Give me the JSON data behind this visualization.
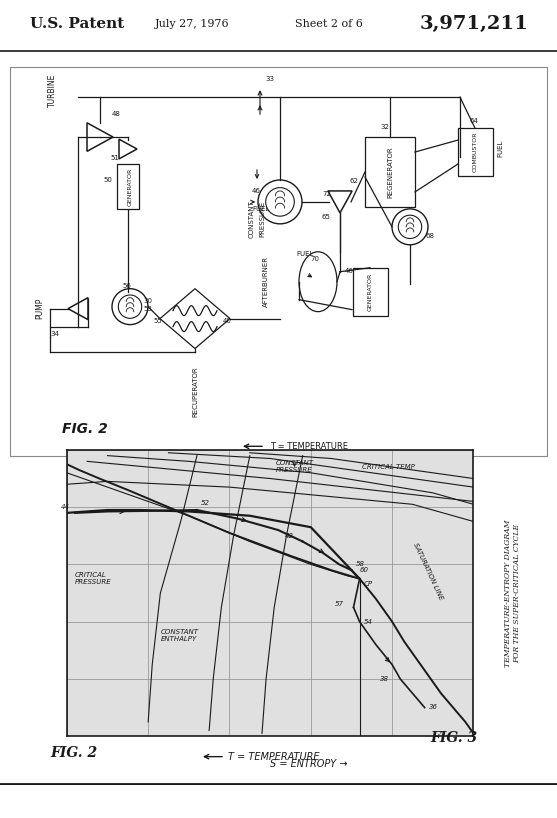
{
  "title_left": "U.S. Patent",
  "title_date": "July 27, 1976",
  "title_sheet": "Sheet 2 of 6",
  "title_number": "3,971,211",
  "background_color": "#f0f0f0",
  "line_color": "#1a1a1a",
  "fig2_label": "FIG. 2",
  "fig3_label": "FIG. 3",
  "ts_xlabel": "T = TEMPERATURE",
  "ts_ylabel": "S = ENTROPY →",
  "ts_title": "TEMPERATURE-ENTROPY DIAGRAM\nFOR THE SUPER-CRITICAL CYCLE",
  "schematic_border_color": "#888888",
  "grid_color": "#aaaaaa",
  "ts_bg": "#e8e8e8"
}
